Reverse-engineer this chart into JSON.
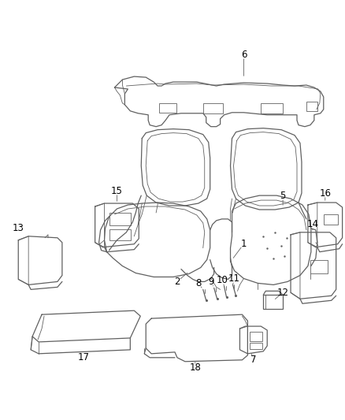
{
  "background_color": "#ffffff",
  "line_color": "#606060",
  "label_color": "#000000",
  "fig_width": 4.38,
  "fig_height": 5.33,
  "dpi": 100
}
